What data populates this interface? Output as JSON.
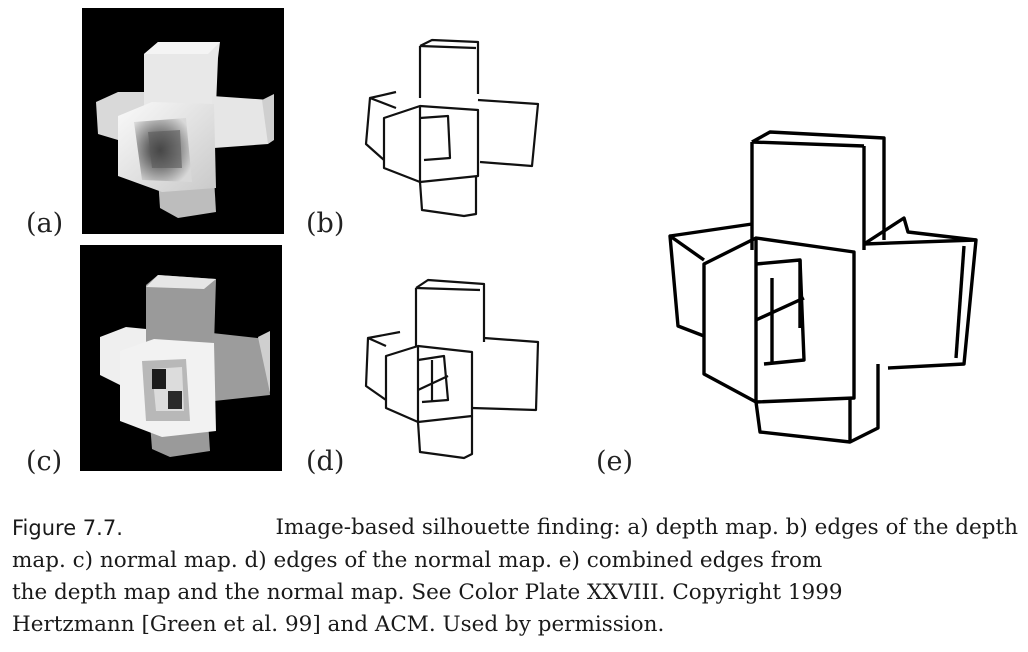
{
  "panels": [
    {
      "id": "a",
      "label": "(a)"
    },
    {
      "id": "b",
      "label": "(b)"
    },
    {
      "id": "c",
      "label": "(c)"
    },
    {
      "id": "d",
      "label": "(d)"
    },
    {
      "id": "e",
      "label": "(e)"
    }
  ],
  "caption": {
    "figure_number": "Figure 7.7.",
    "line1": "Image-based silhouette finding: a) depth map. b) edges of the depth",
    "line2": "map. c) normal map. d) edges of the normal map. e) combined edges from",
    "line3": "the depth map and the normal map. See Color Plate XXVIII. Copyright 1999",
    "line4": "Hertzmann [Green et al. 99] and ACM. Used by permission."
  }
}
